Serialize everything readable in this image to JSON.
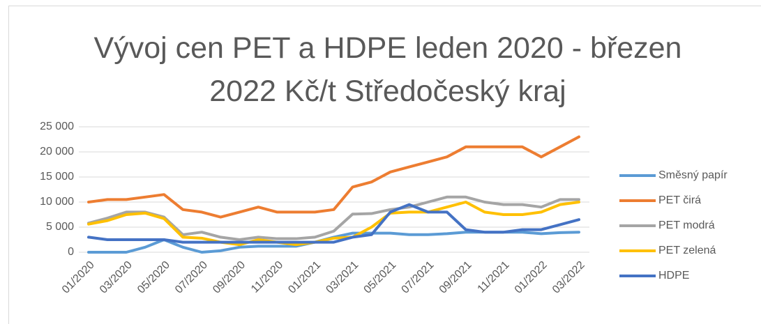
{
  "chart_data": {
    "type": "line",
    "title": "Vývoj cen PET a HDPE leden 2020 - březen 2022 Kč/t Středočeský kraj",
    "categories": [
      "01/2020",
      null,
      "03/2020",
      null,
      "05/2020",
      null,
      "07/2020",
      null,
      "09/2020",
      null,
      "11/2020",
      null,
      "01/2021",
      null,
      "03/2021",
      null,
      "05/2021",
      null,
      "07/2021",
      null,
      "09/2021",
      null,
      "11/2021",
      null,
      "01/2022",
      null,
      "03/2022"
    ],
    "series": [
      {
        "name": "Směsný papír",
        "color": "#5b9bd5",
        "values": [
          0,
          0,
          0,
          1000,
          2500,
          1000,
          0,
          300,
          1000,
          1200,
          1200,
          1200,
          2000,
          3000,
          3800,
          3800,
          3800,
          3500,
          3500,
          3700,
          4000,
          4000,
          4000,
          4000,
          3700,
          3900,
          4000
        ]
      },
      {
        "name": "PET čirá",
        "color": "#ed7d31",
        "values": [
          10000,
          10500,
          10500,
          11000,
          11500,
          8500,
          8000,
          7000,
          8000,
          9000,
          8000,
          8000,
          8000,
          8500,
          13000,
          14000,
          16000,
          17000,
          18000,
          19000,
          21000,
          21000,
          21000,
          21000,
          19000,
          21000,
          23000
        ]
      },
      {
        "name": "PET modrá",
        "color": "#a5a5a5",
        "values": [
          5800,
          6800,
          8000,
          8000,
          7000,
          3500,
          4000,
          3000,
          2500,
          3000,
          2700,
          2700,
          3000,
          4200,
          7600,
          7700,
          8500,
          9000,
          10000,
          11000,
          11000,
          10000,
          9500,
          9500,
          9000,
          10500,
          10500
        ]
      },
      {
        "name": "PET zelená",
        "color": "#ffc000",
        "values": [
          5600,
          6300,
          7500,
          7800,
          6700,
          3000,
          2800,
          2000,
          1500,
          2500,
          2000,
          1500,
          2000,
          2800,
          3000,
          5000,
          7800,
          8000,
          8000,
          9000,
          10000,
          8000,
          7500,
          7500,
          8000,
          9500,
          10000
        ]
      },
      {
        "name": "HDPE",
        "color": "#4472c4",
        "values": [
          3000,
          2500,
          2500,
          2500,
          2500,
          2000,
          2000,
          2000,
          2000,
          2000,
          2000,
          2000,
          2000,
          2000,
          3000,
          3500,
          8000,
          9500,
          8000,
          8000,
          4500,
          4000,
          4000,
          4500,
          4500,
          5500,
          6500
        ]
      }
    ],
    "ylim": [
      0,
      25000
    ],
    "yticks": [
      0,
      {
        "value": 5000,
        "label": "5 000"
      },
      {
        "value": 10000,
        "label": "10 000"
      },
      {
        "value": 15000,
        "label": "15 000"
      },
      {
        "value": 20000,
        "label": "20 000"
      },
      {
        "value": 25000,
        "label": "25 000"
      }
    ],
    "grid": true,
    "legend": "right"
  }
}
